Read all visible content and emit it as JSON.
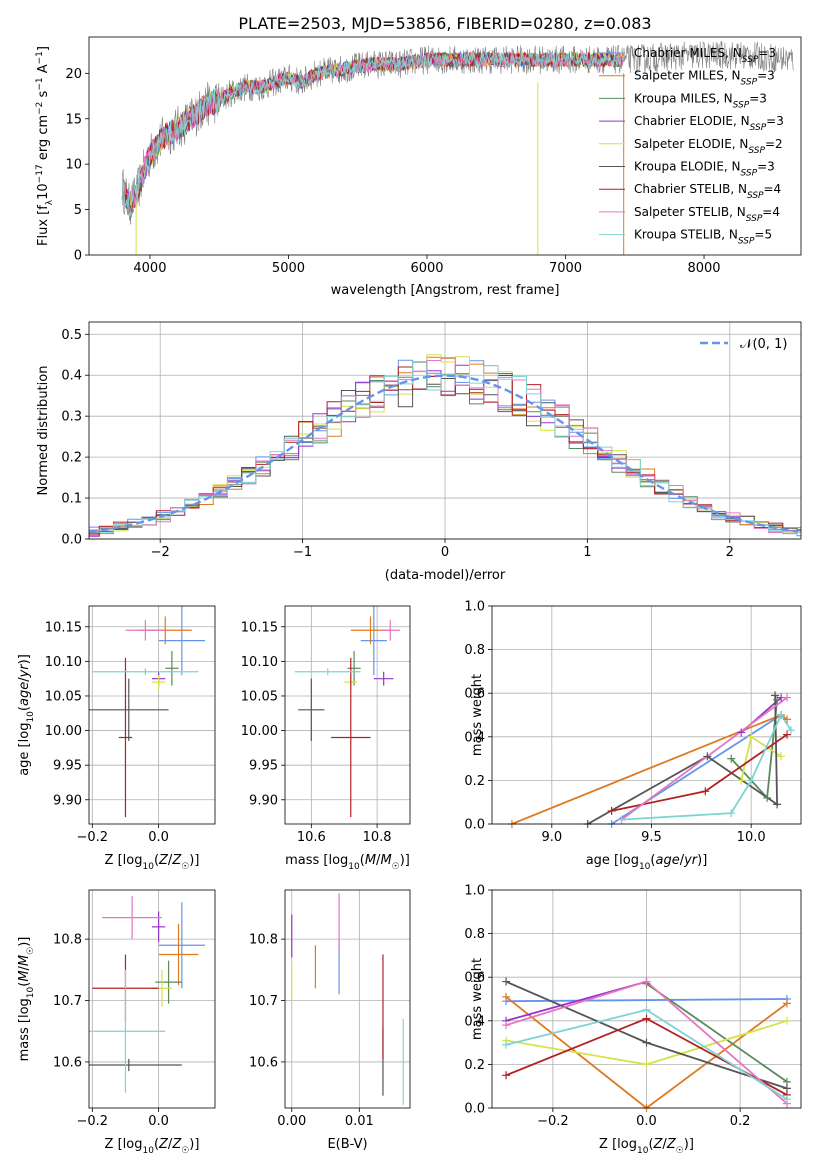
{
  "figure": {
    "title": "PLATE=2503, MJD=53856, FIBERID=0280, z=0.083"
  },
  "colors": {
    "blue": "#6495ed",
    "orange": "#e07a1f",
    "green": "#5a8a5a",
    "purple": "#9932cc",
    "yellow": "#d4e34a",
    "dark": "#555555",
    "red": "#b22222",
    "pink": "#e377c2",
    "cyan": "#7fd3d3"
  },
  "chart_data": [
    {
      "id": "spectrum",
      "type": "line",
      "title": "PLATE=2503, MJD=53856, FIBERID=0280, z=0.083",
      "xlabel": "wavelength [Angstrom, rest frame]",
      "ylabel": "Flux [f_λ 10^-17 erg cm^-2 s^-1 A^-1]",
      "xlim": [
        3560,
        8700
      ],
      "ylim": [
        0,
        24
      ],
      "xticks": [
        4000,
        5000,
        6000,
        7000,
        8000
      ],
      "yticks": [
        0,
        5,
        10,
        15,
        20
      ],
      "grid": false,
      "legend_position": "upper-right",
      "data_envelope": {
        "x": [
          3800,
          3850,
          3900,
          3950,
          4000,
          4100,
          4200,
          4300,
          4400,
          4500,
          4600,
          4700,
          4800,
          4900,
          5000,
          5100,
          5200,
          5400,
          5600,
          5800,
          6000,
          6200,
          6400,
          6600,
          6800,
          7000,
          7200,
          7400,
          7700,
          8000,
          8300,
          8650
        ],
        "y": [
          7.5,
          5.5,
          6.5,
          9,
          11,
          13,
          14,
          15,
          16.5,
          17,
          18,
          18.5,
          18.5,
          19,
          19.5,
          19,
          20,
          20.5,
          21,
          21,
          21.5,
          21.5,
          21.5,
          21.5,
          21.5,
          21.5,
          21.5,
          21.5,
          21.8,
          22,
          22,
          21.5
        ]
      },
      "legend": [
        "Chabrier MILES, N_SSP=3",
        "Salpeter MILES, N_SSP=3",
        "Kroupa MILES, N_SSP=3",
        "Chabrier ELODIE, N_SSP=3",
        "Salpeter ELODIE, N_SSP=2",
        "Kroupa ELODIE, N_SSP=3",
        "Chabrier STELIB, N_SSP=4",
        "Salpeter STELIB, N_SSP=4",
        "Kroupa STELIB, N_SSP=5"
      ]
    },
    {
      "id": "residuals",
      "type": "line",
      "xlabel": "(data-model)/error",
      "ylabel": "Normed distribution",
      "xlim": [
        -2.5,
        2.5
      ],
      "ylim": [
        0,
        0.53
      ],
      "xticks": [
        -2,
        -1,
        0,
        1,
        2
      ],
      "yticks": [
        0.0,
        0.1,
        0.2,
        0.3,
        0.4,
        0.5
      ],
      "grid": true,
      "legend_position": "upper-right",
      "normal_label": "N(0,1)",
      "bin_width": 0.1,
      "histograms_shown": 9
    },
    {
      "id": "age_vs_z",
      "type": "scatter",
      "xlabel": "Z [log10(Z/Z☉)]",
      "ylabel": "age  [log10(age/yr)]",
      "xlim": [
        -0.21,
        0.17
      ],
      "ylim": [
        9.865,
        10.18
      ],
      "xticks": [
        -0.2,
        0.0
      ],
      "yticks": [
        9.9,
        9.95,
        10.0,
        10.05,
        10.1,
        10.15
      ],
      "grid": true,
      "points": [
        {
          "x": 0.07,
          "xerr": 0.07,
          "y": 10.13,
          "yerr": 0.05,
          "color": "blue"
        },
        {
          "x": 0.02,
          "xerr": 0.08,
          "y": 10.145,
          "yerr": 0.02,
          "color": "orange"
        },
        {
          "x": 0.04,
          "xerr": 0.02,
          "y": 10.09,
          "yerr": 0.025,
          "color": "green"
        },
        {
          "x": 0.0,
          "xerr": 0.02,
          "y": 10.075,
          "yerr": 0.01,
          "color": "purple"
        },
        {
          "x": 0.0,
          "xerr": 0.02,
          "y": 10.07,
          "yerr": 0.01,
          "color": "yellow"
        },
        {
          "x": -0.09,
          "xerr": 0.12,
          "y": 10.03,
          "yerr": 0.045,
          "color": "dark"
        },
        {
          "x": -0.1,
          "xerr": 0.02,
          "y": 9.99,
          "yerr": 0.115,
          "color": "red"
        },
        {
          "x": -0.04,
          "xerr": 0.06,
          "y": 10.145,
          "yerr": 0.015,
          "color": "pink"
        },
        {
          "x": -0.04,
          "xerr": 0.16,
          "y": 10.085,
          "yerr": 0.005,
          "color": "cyan"
        }
      ]
    },
    {
      "id": "age_vs_mass",
      "type": "scatter",
      "xlabel": "mass [log10(M/M☉)]",
      "ylabel": "",
      "xlim": [
        10.52,
        10.9
      ],
      "ylim": [
        9.865,
        10.18
      ],
      "xticks": [
        10.6,
        10.8
      ],
      "yticks": [
        9.9,
        9.95,
        10.0,
        10.05,
        10.1,
        10.15
      ],
      "grid": true,
      "points": [
        {
          "x": 10.79,
          "xerr": 0.04,
          "y": 10.13,
          "yerr": 0.05,
          "color": "blue"
        },
        {
          "x": 10.78,
          "xerr": 0.06,
          "y": 10.145,
          "yerr": 0.02,
          "color": "orange"
        },
        {
          "x": 10.73,
          "xerr": 0.02,
          "y": 10.09,
          "yerr": 0.025,
          "color": "green"
        },
        {
          "x": 10.82,
          "xerr": 0.03,
          "y": 10.075,
          "yerr": 0.01,
          "color": "purple"
        },
        {
          "x": 10.72,
          "xerr": 0.02,
          "y": 10.07,
          "yerr": 0.01,
          "color": "yellow"
        },
        {
          "x": 10.6,
          "xerr": 0.04,
          "y": 10.03,
          "yerr": 0.045,
          "color": "dark"
        },
        {
          "x": 10.72,
          "xerr": 0.06,
          "y": 9.99,
          "yerr": 0.115,
          "color": "red"
        },
        {
          "x": 10.84,
          "xerr": 0.03,
          "y": 10.145,
          "yerr": 0.015,
          "color": "pink"
        },
        {
          "x": 10.65,
          "xerr": 0.1,
          "y": 10.085,
          "yerr": 0.005,
          "color": "cyan"
        }
      ]
    },
    {
      "id": "weight_vs_age",
      "type": "line",
      "xlabel": "age  [log10(age/yr)]",
      "ylabel": "mass weight",
      "xlim": [
        8.7,
        10.25
      ],
      "ylim": [
        0,
        1.0
      ],
      "xticks": [
        9.0,
        9.5,
        10.0
      ],
      "yticks": [
        0.0,
        0.2,
        0.4,
        0.6,
        0.8,
        1.0
      ],
      "grid": true,
      "series": [
        {
          "color": "blue",
          "x": [
            9.3,
            10.15,
            10.15
          ],
          "y": [
            0.0,
            0.5,
            0.5
          ]
        },
        {
          "color": "orange",
          "x": [
            8.8,
            10.15,
            10.18
          ],
          "y": [
            0.0,
            0.5,
            0.48
          ]
        },
        {
          "color": "green",
          "x": [
            9.9,
            10.08,
            10.13
          ],
          "y": [
            0.3,
            0.12,
            0.57
          ]
        },
        {
          "color": "purple",
          "x": [
            9.95,
            10.15
          ],
          "y": [
            0.42,
            0.58
          ]
        },
        {
          "color": "yellow",
          "x": [
            9.95,
            10.0,
            10.15
          ],
          "y": [
            0.2,
            0.4,
            0.31
          ]
        },
        {
          "color": "dark",
          "x": [
            9.18,
            9.78,
            10.13,
            10.12
          ],
          "y": [
            0.0,
            0.31,
            0.09,
            0.59
          ]
        },
        {
          "color": "red",
          "x": [
            9.3,
            9.77,
            10.18
          ],
          "y": [
            0.06,
            0.15,
            0.41
          ]
        },
        {
          "color": "pink",
          "x": [
            9.35,
            10.18
          ],
          "y": [
            0.02,
            0.58
          ]
        },
        {
          "color": "cyan",
          "x": [
            9.35,
            9.9,
            10.0,
            10.15,
            10.2
          ],
          "y": [
            0.02,
            0.05,
            0.2,
            0.5,
            0.43
          ]
        }
      ]
    },
    {
      "id": "mass_vs_z",
      "type": "scatter",
      "xlabel": "Z [log10(Z/Z☉)]",
      "ylabel": "mass [log10(M/M☉)]",
      "xlim": [
        -0.21,
        0.17
      ],
      "ylim": [
        10.525,
        10.88
      ],
      "xticks": [
        -0.2,
        0.0
      ],
      "yticks": [
        10.6,
        10.7,
        10.8
      ],
      "grid": true,
      "points": [
        {
          "x": 0.07,
          "xerr": 0.07,
          "y": 10.79,
          "yerr": 0.07,
          "color": "blue"
        },
        {
          "x": 0.06,
          "xerr": 0.06,
          "y": 10.775,
          "yerr": 0.05,
          "color": "orange"
        },
        {
          "x": 0.03,
          "xerr": 0.04,
          "y": 10.73,
          "yerr": 0.035,
          "color": "green"
        },
        {
          "x": 0.0,
          "xerr": 0.02,
          "y": 10.82,
          "yerr": 0.025,
          "color": "purple"
        },
        {
          "x": 0.01,
          "xerr": 0.03,
          "y": 10.72,
          "yerr": 0.03,
          "color": "yellow"
        },
        {
          "x": -0.09,
          "xerr": 0.16,
          "y": 10.595,
          "yerr": 0.01,
          "color": "dark"
        },
        {
          "x": -0.1,
          "xerr": 0.1,
          "y": 10.72,
          "yerr": 0.055,
          "color": "red"
        },
        {
          "x": -0.08,
          "xerr": 0.09,
          "y": 10.835,
          "yerr": 0.035,
          "color": "pink"
        },
        {
          "x": -0.1,
          "xerr": 0.12,
          "y": 10.65,
          "yerr": 0.1,
          "color": "cyan"
        }
      ]
    },
    {
      "id": "mass_vs_ebv",
      "type": "scatter",
      "xlabel": "E(B-V)",
      "ylabel": "",
      "xlim": [
        -0.001,
        0.0175
      ],
      "ylim": [
        10.525,
        10.88
      ],
      "xticks": [
        0.0,
        0.01
      ],
      "yticks": [
        10.6,
        10.7,
        10.8
      ],
      "grid": true,
      "points": [
        {
          "x": 0.007,
          "y": 10.755,
          "yerr": 0.045,
          "color": "blue"
        },
        {
          "x": 0.0035,
          "y": 10.755,
          "yerr": 0.035,
          "color": "orange"
        },
        {
          "x": 0.0,
          "y": 10.805,
          "yerr": 0.035,
          "color": "purple"
        },
        {
          "x": 0.0,
          "y": 10.73,
          "yerr": 0.03,
          "color": "yellow"
        },
        {
          "x": 0.0135,
          "y": 10.6,
          "yerr": 0.055,
          "color": "dark"
        },
        {
          "x": 0.0135,
          "y": 10.69,
          "yerr": 0.085,
          "color": "red"
        },
        {
          "x": 0.007,
          "y": 10.83,
          "yerr": 0.045,
          "color": "pink"
        },
        {
          "x": 0.0165,
          "y": 10.6,
          "yerr": 0.07,
          "color": "cyan"
        }
      ]
    },
    {
      "id": "weight_vs_z",
      "type": "line",
      "xlabel": "Z [log10(Z/Z☉)]",
      "ylabel": "mass weight",
      "xlim": [
        -0.33,
        0.33
      ],
      "ylim": [
        0,
        1.0
      ],
      "xticks": [
        -0.2,
        0.0,
        0.2
      ],
      "yticks": [
        0.0,
        0.2,
        0.4,
        0.6,
        0.8,
        1.0
      ],
      "grid": true,
      "series": [
        {
          "color": "blue",
          "x": [
            -0.3,
            0.3
          ],
          "y": [
            0.49,
            0.5
          ]
        },
        {
          "color": "orange",
          "x": [
            -0.3,
            0.0,
            0.3
          ],
          "y": [
            0.51,
            0.0,
            0.48
          ]
        },
        {
          "color": "green",
          "x": [
            0.0,
            0.3
          ],
          "y": [
            0.57,
            0.12
          ]
        },
        {
          "color": "purple",
          "x": [
            -0.3,
            0.0
          ],
          "y": [
            0.4,
            0.58
          ]
        },
        {
          "color": "yellow",
          "x": [
            -0.3,
            0.0,
            0.3
          ],
          "y": [
            0.31,
            0.2,
            0.4
          ]
        },
        {
          "color": "dark",
          "x": [
            -0.3,
            0.0,
            0.3
          ],
          "y": [
            0.58,
            0.3,
            0.09
          ]
        },
        {
          "color": "red",
          "x": [
            -0.3,
            0.0,
            0.3
          ],
          "y": [
            0.15,
            0.41,
            0.06
          ]
        },
        {
          "color": "pink",
          "x": [
            -0.3,
            0.0,
            0.3
          ],
          "y": [
            0.38,
            0.58,
            0.02
          ]
        },
        {
          "color": "cyan",
          "x": [
            -0.3,
            0.0,
            0.3
          ],
          "y": [
            0.29,
            0.45,
            0.04
          ]
        }
      ]
    }
  ]
}
